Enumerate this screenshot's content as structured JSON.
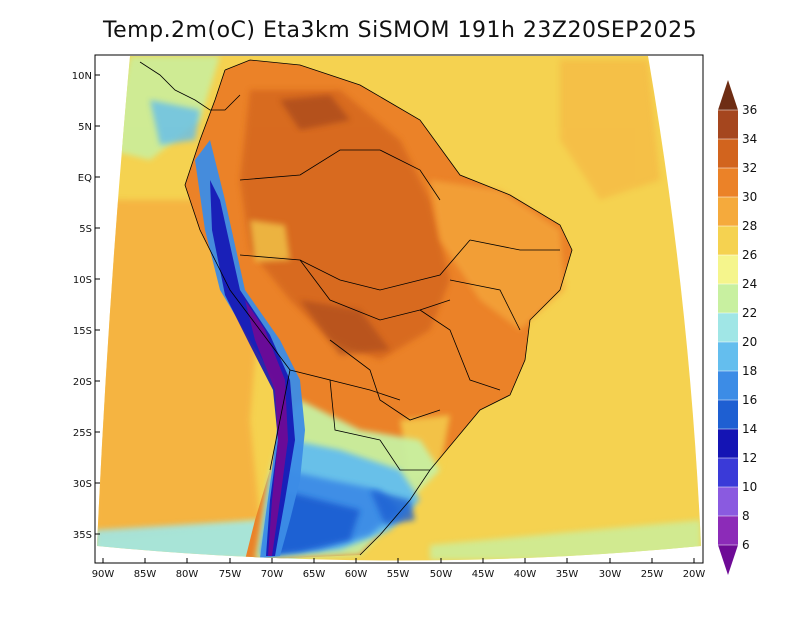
{
  "title": "Temp.2m(oC) Eta3km SiSMOM 191h 23Z20SEP2025",
  "axes": {
    "lat_labels": [
      "10N",
      "5N",
      "EQ",
      "5S",
      "10S",
      "15S",
      "20S",
      "25S",
      "30S",
      "35S"
    ],
    "lon_labels": [
      "90W",
      "85W",
      "80W",
      "75W",
      "70W",
      "65W",
      "60W",
      "55W",
      "50W",
      "45W",
      "40W",
      "35W",
      "30W",
      "25W",
      "20W"
    ]
  },
  "colorbar": {
    "levels": [
      "6",
      "8",
      "10",
      "12",
      "14",
      "16",
      "18",
      "20",
      "22",
      "24",
      "26",
      "28",
      "30",
      "32",
      "34",
      "36"
    ],
    "colors": [
      "#6e0b96",
      "#8c2bb8",
      "#8a5ae0",
      "#3a3ad8",
      "#1414b4",
      "#1e5fd2",
      "#3c8ce6",
      "#64beee",
      "#a0e6e6",
      "#c8f0a0",
      "#f5f58c",
      "#f5d250",
      "#f5aa3c",
      "#eb8228",
      "#d2641e",
      "#a5461e",
      "#6e2d14"
    ]
  }
}
